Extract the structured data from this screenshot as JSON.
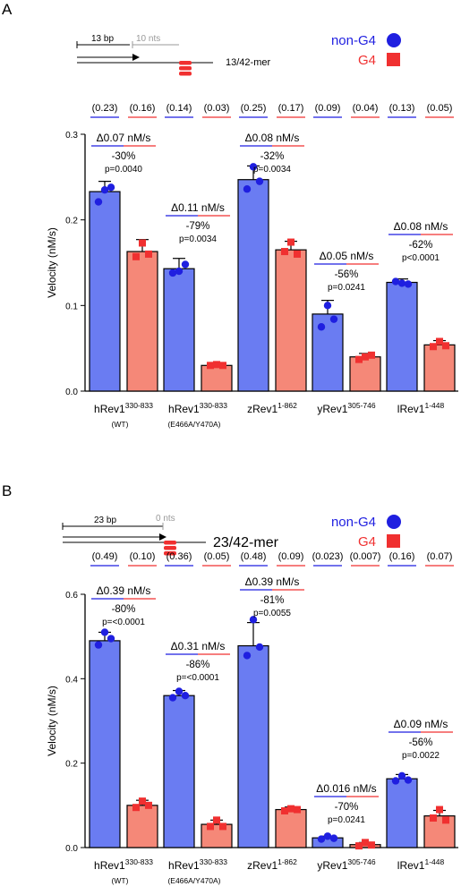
{
  "legend": {
    "non_g4_label": "non-G4",
    "g4_label": "G4",
    "non_g4_color": "#1f1fe0",
    "g4_color": "#f03030",
    "bar_blue": "#6a7cf2",
    "bar_red": "#f58878"
  },
  "chart_data": [
    {
      "panel_label": "A",
      "type": "bar",
      "primer": {
        "length_label": "13 bp",
        "gap_label": "10 nts",
        "construct_label": "13/42-mer"
      },
      "ylabel": "Velocity (nM/s)",
      "ylim": [
        0,
        0.3
      ],
      "yticks": [
        "0.0",
        "0.1",
        "0.2",
        "0.3"
      ],
      "categories": [
        {
          "name": "hRev1",
          "sup": "330-833",
          "sub": "(WT)"
        },
        {
          "name": "hRev1",
          "sup": "330-833",
          "sub": "(E466A/Y470A)"
        },
        {
          "name": "zRev1",
          "sup": "1-862",
          "sub": ""
        },
        {
          "name": "yRev1",
          "sup": "305-746",
          "sub": ""
        },
        {
          "name": "lRev1",
          "sup": "1-448",
          "sub": ""
        }
      ],
      "series": [
        {
          "name": "non-G4",
          "values": [
            0.233,
            0.143,
            0.247,
            0.09,
            0.127
          ],
          "errors": [
            0.012,
            0.012,
            0.016,
            0.016,
            0.004
          ],
          "points": [
            [
              0.235,
              0.221,
              0.238
            ],
            [
              0.14,
              0.138,
              0.148
            ],
            [
              0.262,
              0.236,
              0.245
            ],
            [
              0.1,
              0.075,
              0.084
            ],
            [
              0.126,
              0.128,
              0.125
            ]
          ]
        },
        {
          "name": "G4",
          "values": [
            0.163,
            0.03,
            0.165,
            0.04,
            0.054
          ],
          "errors": [
            0.014,
            0.003,
            0.01,
            0.004,
            0.005
          ],
          "points": [
            [
              0.173,
              0.157,
              0.16
            ],
            [
              0.031,
              0.03,
              0.03
            ],
            [
              0.174,
              0.163,
              0.16
            ],
            [
              0.04,
              0.037,
              0.042
            ],
            [
              0.058,
              0.052,
              0.053
            ]
          ]
        }
      ],
      "ratios": [
        "(0.23)",
        "(0.16)",
        "(0.14)",
        "(0.03)",
        "(0.25)",
        "(0.17)",
        "(0.09)",
        "(0.04)",
        "(0.13)",
        "(0.05)"
      ],
      "annotations": [
        {
          "delta": "Δ0.07 nM/s",
          "pct": "-30%",
          "p": "p=0.0040"
        },
        {
          "delta": "Δ0.11 nM/s",
          "pct": "-79%",
          "p": "p=0.0034"
        },
        {
          "delta": "Δ0.08 nM/s",
          "pct": "-32%",
          "p": "p=0.0034"
        },
        {
          "delta": "Δ0.05 nM/s",
          "pct": "-56%",
          "p": "p=0.0241"
        },
        {
          "delta": "Δ0.08 nM/s",
          "pct": "-62%",
          "p": "p<0.0001"
        }
      ]
    },
    {
      "panel_label": "B",
      "type": "bar",
      "primer": {
        "length_label": "23 bp",
        "gap_label": "0 nts",
        "construct_label": "23/42-mer"
      },
      "ylabel": "Velocity (nM/s)",
      "ylim": [
        0,
        0.6
      ],
      "yticks": [
        "0.0",
        "0.2",
        "0.4",
        "0.6"
      ],
      "categories": [
        {
          "name": "hRev1",
          "sup": "330-833",
          "sub": "(WT)"
        },
        {
          "name": "hRev1",
          "sup": "330-833",
          "sub": "(E466A/Y470A)"
        },
        {
          "name": "zRev1",
          "sup": "1-862",
          "sub": ""
        },
        {
          "name": "yRev1",
          "sup": "305-746",
          "sub": ""
        },
        {
          "name": "lRev1",
          "sup": "1-448",
          "sub": ""
        }
      ],
      "series": [
        {
          "name": "non-G4",
          "values": [
            0.49,
            0.36,
            0.478,
            0.023,
            0.163
          ],
          "errors": [
            0.02,
            0.012,
            0.055,
            0.004,
            0.01
          ],
          "points": [
            [
              0.51,
              0.48,
              0.495
            ],
            [
              0.37,
              0.355,
              0.36
            ],
            [
              0.54,
              0.455,
              0.475
            ],
            [
              0.027,
              0.02,
              0.022
            ],
            [
              0.17,
              0.158,
              0.16
            ]
          ]
        },
        {
          "name": "G4",
          "values": [
            0.1,
            0.055,
            0.09,
            0.007,
            0.075
          ],
          "errors": [
            0.012,
            0.01,
            0.006,
            0.005,
            0.013
          ],
          "points": [
            [
              0.11,
              0.095,
              0.1
            ],
            [
              0.065,
              0.05,
              0.05
            ],
            [
              0.092,
              0.087,
              0.09
            ],
            [
              0.012,
              0.004,
              0.006
            ],
            [
              0.09,
              0.07,
              0.065
            ]
          ]
        }
      ],
      "ratios": [
        "(0.49)",
        "(0.10)",
        "(0.36)",
        "(0.05)",
        "(0.48)",
        "(0.09)",
        "(0.023)",
        "(0.007)",
        "(0.16)",
        "(0.07)"
      ],
      "annotations": [
        {
          "delta": "Δ0.39 nM/s",
          "pct": "-80%",
          "p": "p=<0.0001"
        },
        {
          "delta": "Δ0.31 nM/s",
          "pct": "-86%",
          "p": "p=<0.0001"
        },
        {
          "delta": "Δ0.39 nM/s",
          "pct": "-81%",
          "p": "p=0.0055"
        },
        {
          "delta": "Δ0.016 nM/s",
          "pct": "-70%",
          "p": "p=0.0241"
        },
        {
          "delta": "Δ0.09 nM/s",
          "pct": "-56%",
          "p": "p=0.0022"
        }
      ]
    }
  ]
}
